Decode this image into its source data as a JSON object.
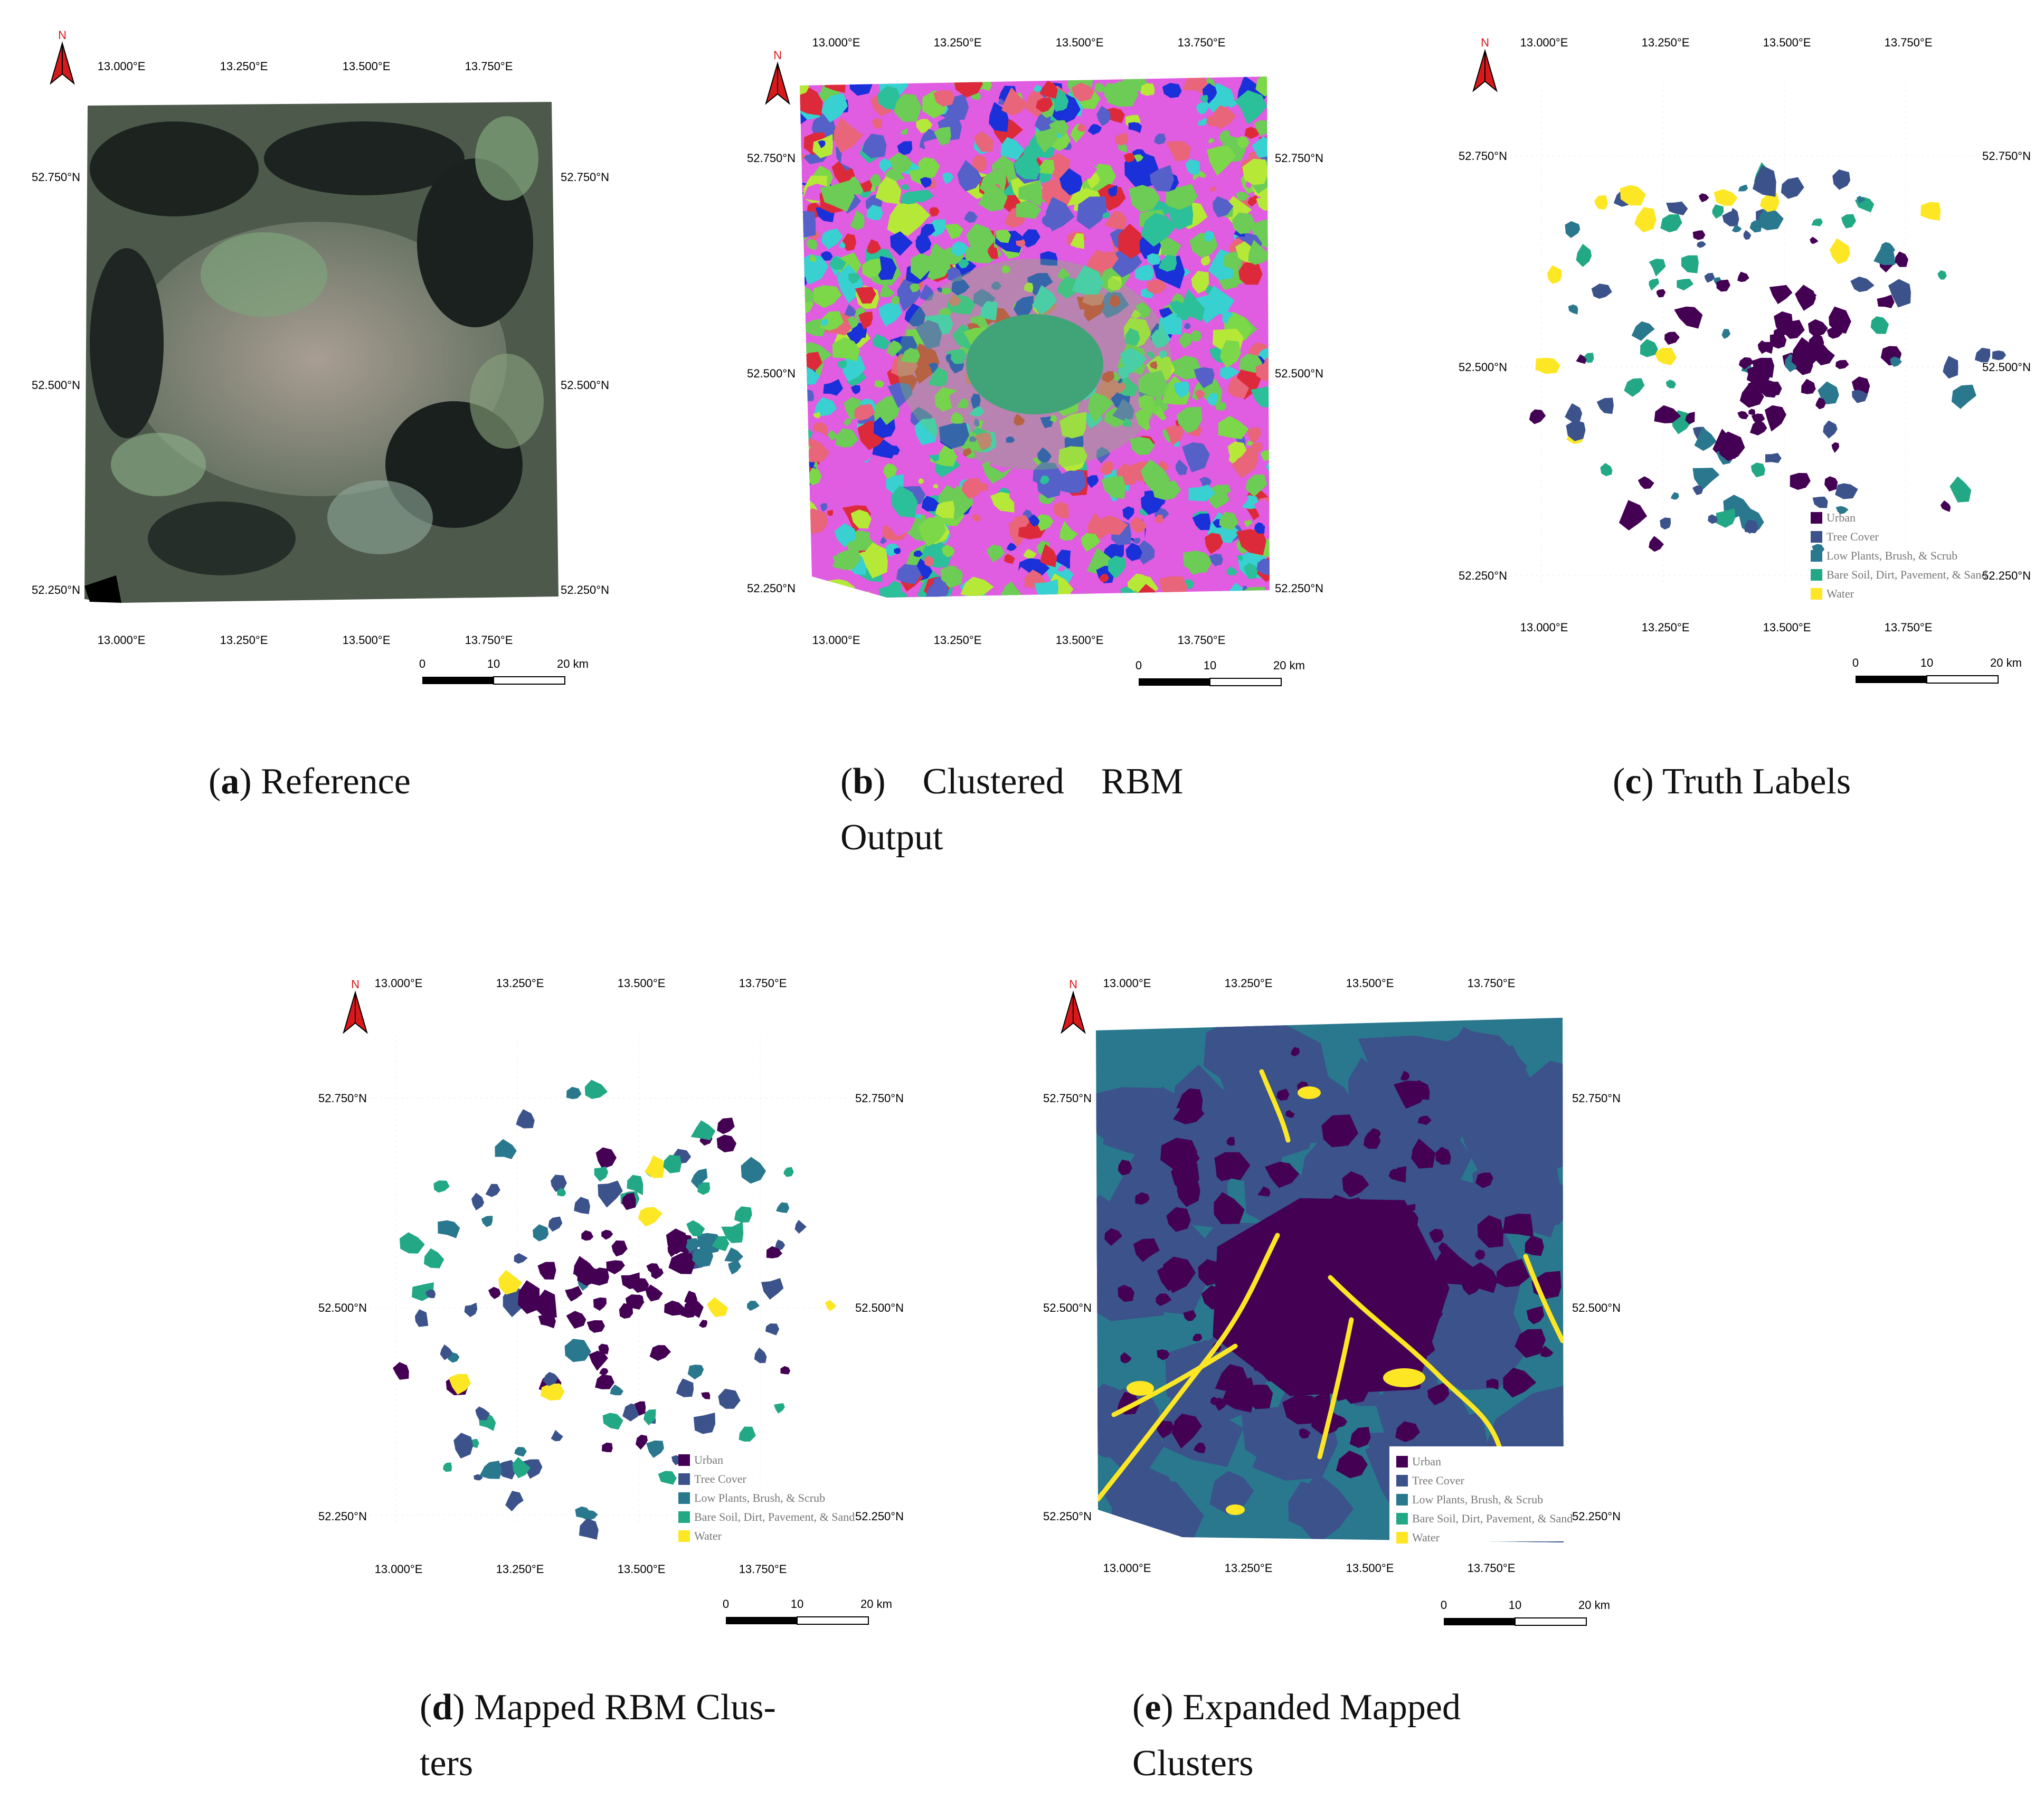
{
  "colors": {
    "urban": "#440154",
    "tree_cover": "#3b528b",
    "low_plants": "#2a788e",
    "bare_soil": "#22a884",
    "water": "#fde725",
    "north_arrow": "#d7191c"
  },
  "map_common": {
    "north_label": "N",
    "lon_ticks": [
      "13.000°E",
      "13.250°E",
      "13.500°E",
      "13.750°E"
    ],
    "lat_ticks": [
      "52.750°N",
      "52.500°N",
      "52.250°N"
    ],
    "scale_labels": [
      "0",
      "10",
      "20 km"
    ]
  },
  "legend": {
    "items": [
      {
        "label": "Urban",
        "color": "#440154"
      },
      {
        "label": "Tree Cover",
        "color": "#3b528b"
      },
      {
        "label": "Low Plants, Brush,  & Scrub",
        "color": "#2a788e"
      },
      {
        "label": "Bare Soil,  Dirt,  Pavement,  & Sand",
        "color": "#22a884"
      },
      {
        "label": "Water",
        "color": "#fde725"
      }
    ]
  },
  "panels": [
    {
      "id": "a",
      "letter": "(a)",
      "caption": " Reference",
      "caption2": "",
      "kind": "reference"
    },
    {
      "id": "b",
      "letter": "(b)",
      "caption": "    Clustered    RBM",
      "caption2": "Output",
      "kind": "clustered"
    },
    {
      "id": "c",
      "letter": "(c)",
      "caption": " Truth Labels",
      "caption2": "",
      "kind": "truth"
    },
    {
      "id": "d",
      "letter": "(d)",
      "caption": " Mapped RBM Clus-",
      "caption2": "ters",
      "kind": "mapped"
    },
    {
      "id": "e",
      "letter": "(e)",
      "caption": " Expanded Mapped",
      "caption2": "Clusters",
      "kind": "expanded"
    }
  ]
}
